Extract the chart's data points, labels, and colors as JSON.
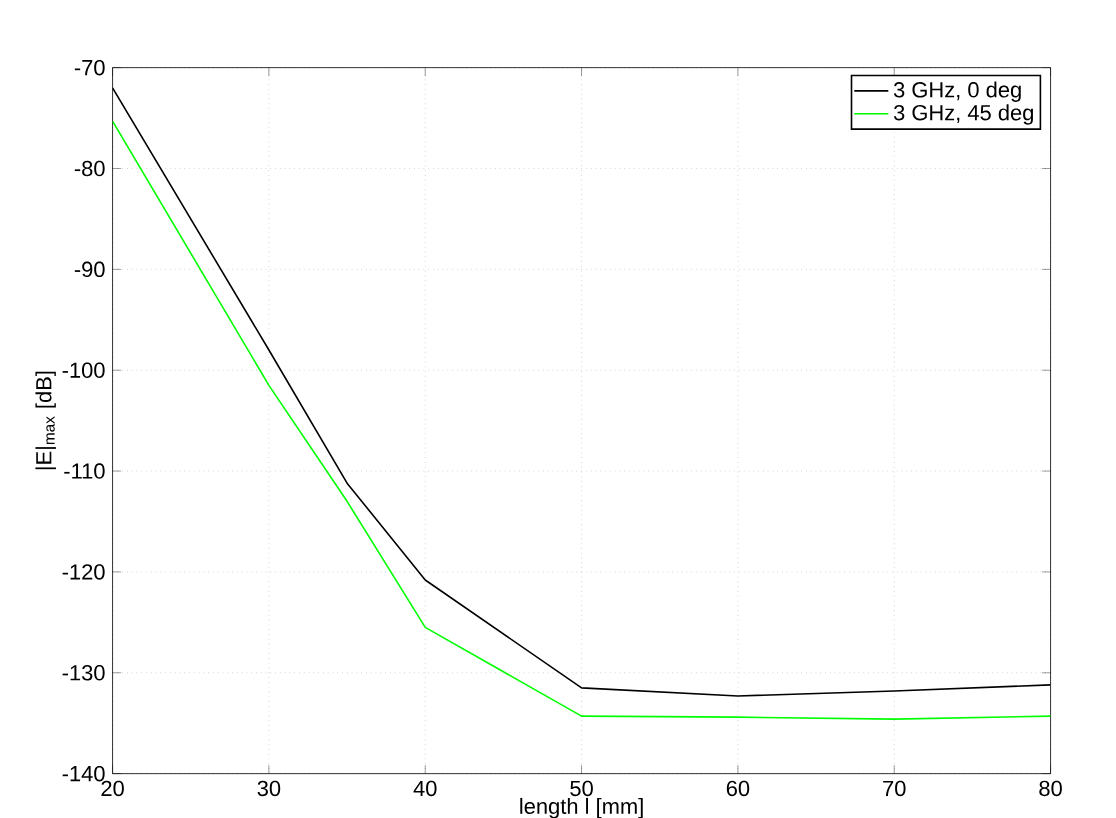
{
  "chart_data": {
    "type": "line",
    "xlabel": "length l [mm]",
    "ylabel": "|E|$_{max}$ [dB]",
    "x": [
      20,
      30,
      35,
      40,
      50,
      60,
      70,
      80
    ],
    "series": [
      {
        "name": "3 GHz, 0 deg",
        "color": "#000000",
        "values": [
          -72,
          -98,
          -111.2,
          -120.8,
          -131.5,
          -132.3,
          -131.8,
          -131.2
        ]
      },
      {
        "name": "3 GHz, 45 deg",
        "color": "#00ff00",
        "values": [
          -75.3,
          -101.5,
          -113,
          -125.5,
          -134.3,
          -134.4,
          -134.6,
          -134.3
        ]
      }
    ],
    "xlim": [
      20,
      80
    ],
    "ylim": [
      -140,
      -70
    ],
    "xticks": [
      20,
      30,
      40,
      50,
      60,
      70,
      80
    ],
    "yticks": [
      -140,
      -130,
      -120,
      -110,
      -100,
      -90,
      -80,
      -70
    ],
    "grid": true,
    "legend": "top right",
    "marker": "none",
    "line_style": "solid"
  }
}
